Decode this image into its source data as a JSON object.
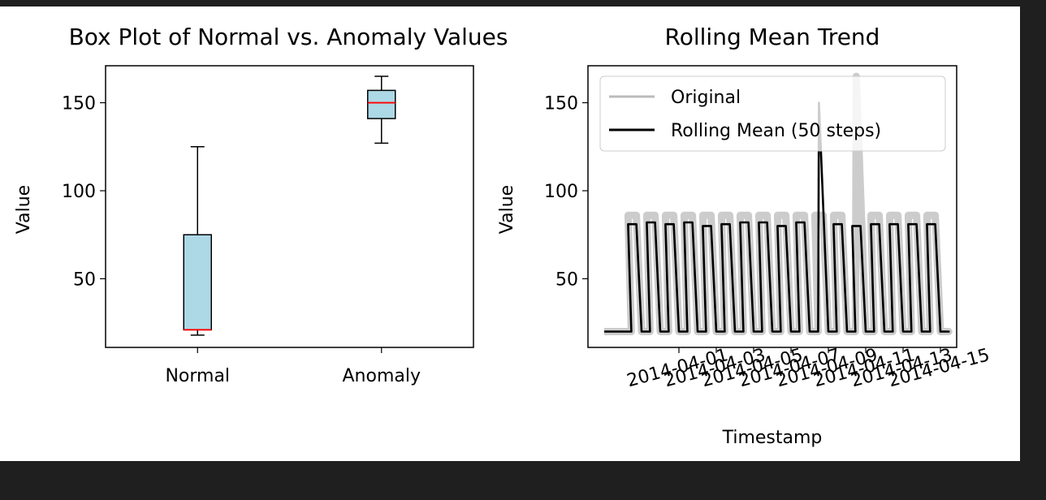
{
  "chart_data": [
    {
      "type": "box",
      "title": "Box Plot of Normal vs. Anomaly Values",
      "xlabel": "",
      "ylabel": "Value",
      "categories": [
        "Normal",
        "Anomaly"
      ],
      "boxes": [
        {
          "label": "Normal",
          "min": 18,
          "q1": 21,
          "median": 21,
          "q3": 75,
          "max": 125
        },
        {
          "label": "Anomaly",
          "min": 127,
          "q1": 141,
          "median": 150,
          "q3": 157,
          "max": 165
        }
      ],
      "yticks": [
        50,
        100,
        150
      ],
      "ylim": [
        11,
        171
      ],
      "box_color": "#add8e6",
      "median_color": "#ff0000"
    },
    {
      "type": "line",
      "title": "Rolling Mean Trend",
      "xlabel": "Timestamp",
      "ylabel": "Value",
      "legend_position": "top-left",
      "xticks": [
        "2014-04-01",
        "2014-04-03",
        "2014-04-05",
        "2014-04-07",
        "2014-04-09",
        "2014-04-11",
        "2014-04-13",
        "2014-04-15"
      ],
      "yticks": [
        50,
        100,
        150
      ],
      "xlim": [
        "2014-03-28",
        "2014-04-15"
      ],
      "ylim": [
        11,
        171
      ],
      "series": [
        {
          "name": "Original",
          "color": "#bbbbbb",
          "x": [
            "2014-03-28",
            "2014-03-29",
            "2014-03-29",
            "2014-03-30",
            "2014-03-30",
            "2014-03-31",
            "2014-03-31",
            "2014-04-01",
            "2014-04-01",
            "2014-04-02",
            "2014-04-02",
            "2014-04-03",
            "2014-04-03",
            "2014-04-04",
            "2014-04-04",
            "2014-04-05",
            "2014-04-05",
            "2014-04-06",
            "2014-04-06",
            "2014-04-07",
            "2014-04-07",
            "2014-04-08",
            "2014-04-08",
            "2014-04-09",
            "2014-04-09",
            "2014-04-10",
            "2014-04-10",
            "2014-04-11",
            "2014-04-11",
            "2014-04-12",
            "2014-04-12",
            "2014-04-13",
            "2014-04-13",
            "2014-04-14",
            "2014-04-14",
            "2014-04-15",
            "2014-04-15"
          ],
          "y": [
            20,
            20,
            86,
            20,
            86,
            20,
            86,
            20,
            86,
            20,
            86,
            20,
            86,
            20,
            86,
            20,
            86,
            20,
            86,
            20,
            86,
            20,
            86,
            20,
            86,
            20,
            165,
            20,
            86,
            20,
            86,
            20,
            86,
            20,
            86,
            20,
            20
          ]
        },
        {
          "name": "Rolling Mean (50 steps)",
          "color": "#000000",
          "x": [
            "2014-03-28",
            "2014-03-29",
            "2014-03-29",
            "2014-03-30",
            "2014-03-30",
            "2014-03-31",
            "2014-03-31",
            "2014-04-01",
            "2014-04-01",
            "2014-04-02",
            "2014-04-02",
            "2014-04-03",
            "2014-04-03",
            "2014-04-04",
            "2014-04-04",
            "2014-04-05",
            "2014-04-05",
            "2014-04-06",
            "2014-04-06",
            "2014-04-07",
            "2014-04-07",
            "2014-04-08",
            "2014-04-08",
            "2014-04-09",
            "2014-04-09",
            "2014-04-10",
            "2014-04-10",
            "2014-04-11",
            "2014-04-11",
            "2014-04-12",
            "2014-04-12",
            "2014-04-13",
            "2014-04-13",
            "2014-04-14",
            "2014-04-14",
            "2014-04-15",
            "2014-04-15"
          ],
          "y": [
            20,
            20,
            81,
            20,
            82,
            20,
            81,
            20,
            82,
            20,
            80,
            20,
            81,
            20,
            82,
            20,
            82,
            20,
            80,
            20,
            82,
            20,
            150,
            20,
            81,
            20,
            80,
            20,
            81,
            20,
            81,
            20,
            81,
            20,
            81,
            20,
            20
          ]
        }
      ]
    }
  ]
}
